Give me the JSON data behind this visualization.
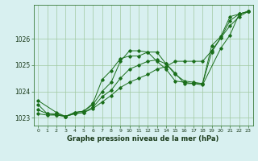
{
  "title": "Graphe pression niveau de la mer (hPa)",
  "bg_color": "#d8f0f0",
  "grid_color": "#a0c8a0",
  "line_color": "#1a6e1a",
  "xlim": [
    -0.5,
    23.5
  ],
  "ylim": [
    1022.7,
    1027.3
  ],
  "yticks": [
    1023,
    1024,
    1025,
    1026
  ],
  "xticks": [
    0,
    1,
    2,
    3,
    4,
    5,
    6,
    7,
    8,
    9,
    10,
    11,
    12,
    13,
    14,
    15,
    16,
    17,
    18,
    19,
    20,
    21,
    22,
    23
  ],
  "series": [
    {
      "x": [
        0,
        1,
        2,
        3,
        4,
        5,
        6,
        7,
        8,
        9,
        10,
        11,
        12,
        13,
        14,
        15,
        16,
        17,
        18,
        19,
        20,
        21,
        22,
        23
      ],
      "y": [
        1023.3,
        1023.15,
        1023.15,
        1023.05,
        1023.2,
        1023.25,
        1023.5,
        1024.0,
        1024.35,
        1025.15,
        1025.55,
        1025.55,
        1025.5,
        1025.15,
        1024.85,
        1024.4,
        1024.35,
        1024.3,
        1024.3,
        1025.75,
        1026.1,
        1026.85,
        1026.95,
        1027.05
      ]
    },
    {
      "x": [
        0,
        1,
        2,
        3,
        4,
        5,
        6,
        7,
        8,
        9,
        10,
        11,
        12,
        13,
        14,
        15,
        16,
        17,
        18,
        19,
        20,
        21,
        22,
        23
      ],
      "y": [
        1023.5,
        1023.15,
        1023.1,
        1023.05,
        1023.15,
        1023.2,
        1023.4,
        1023.8,
        1024.05,
        1024.5,
        1024.85,
        1025.0,
        1025.15,
        1025.2,
        1025.05,
        1024.65,
        1024.4,
        1024.35,
        1024.3,
        1025.5,
        1026.05,
        1026.7,
        1026.95,
        1027.05
      ]
    },
    {
      "x": [
        0,
        2,
        3,
        4,
        5,
        6,
        7,
        8,
        9,
        10,
        11,
        12,
        13,
        14,
        15,
        16,
        17,
        18,
        20,
        21,
        22,
        23
      ],
      "y": [
        1023.65,
        1023.2,
        1023.05,
        1023.2,
        1023.25,
        1023.55,
        1024.45,
        1024.8,
        1025.25,
        1025.35,
        1025.35,
        1025.5,
        1025.5,
        1025.05,
        1024.7,
        1024.3,
        1024.3,
        1024.25,
        1025.65,
        1026.15,
        1026.95,
        1027.05
      ]
    },
    {
      "x": [
        0,
        1,
        2,
        3,
        4,
        5,
        6,
        7,
        8,
        9,
        10,
        11,
        12,
        13,
        14,
        15,
        16,
        17,
        18,
        19,
        20,
        21,
        22,
        23
      ],
      "y": [
        1023.15,
        1023.1,
        1023.1,
        1023.05,
        1023.15,
        1023.2,
        1023.35,
        1023.6,
        1023.85,
        1024.15,
        1024.35,
        1024.5,
        1024.65,
        1024.85,
        1024.95,
        1025.15,
        1025.15,
        1025.15,
        1025.15,
        1025.55,
        1026.05,
        1026.5,
        1026.85,
        1027.05
      ]
    }
  ]
}
